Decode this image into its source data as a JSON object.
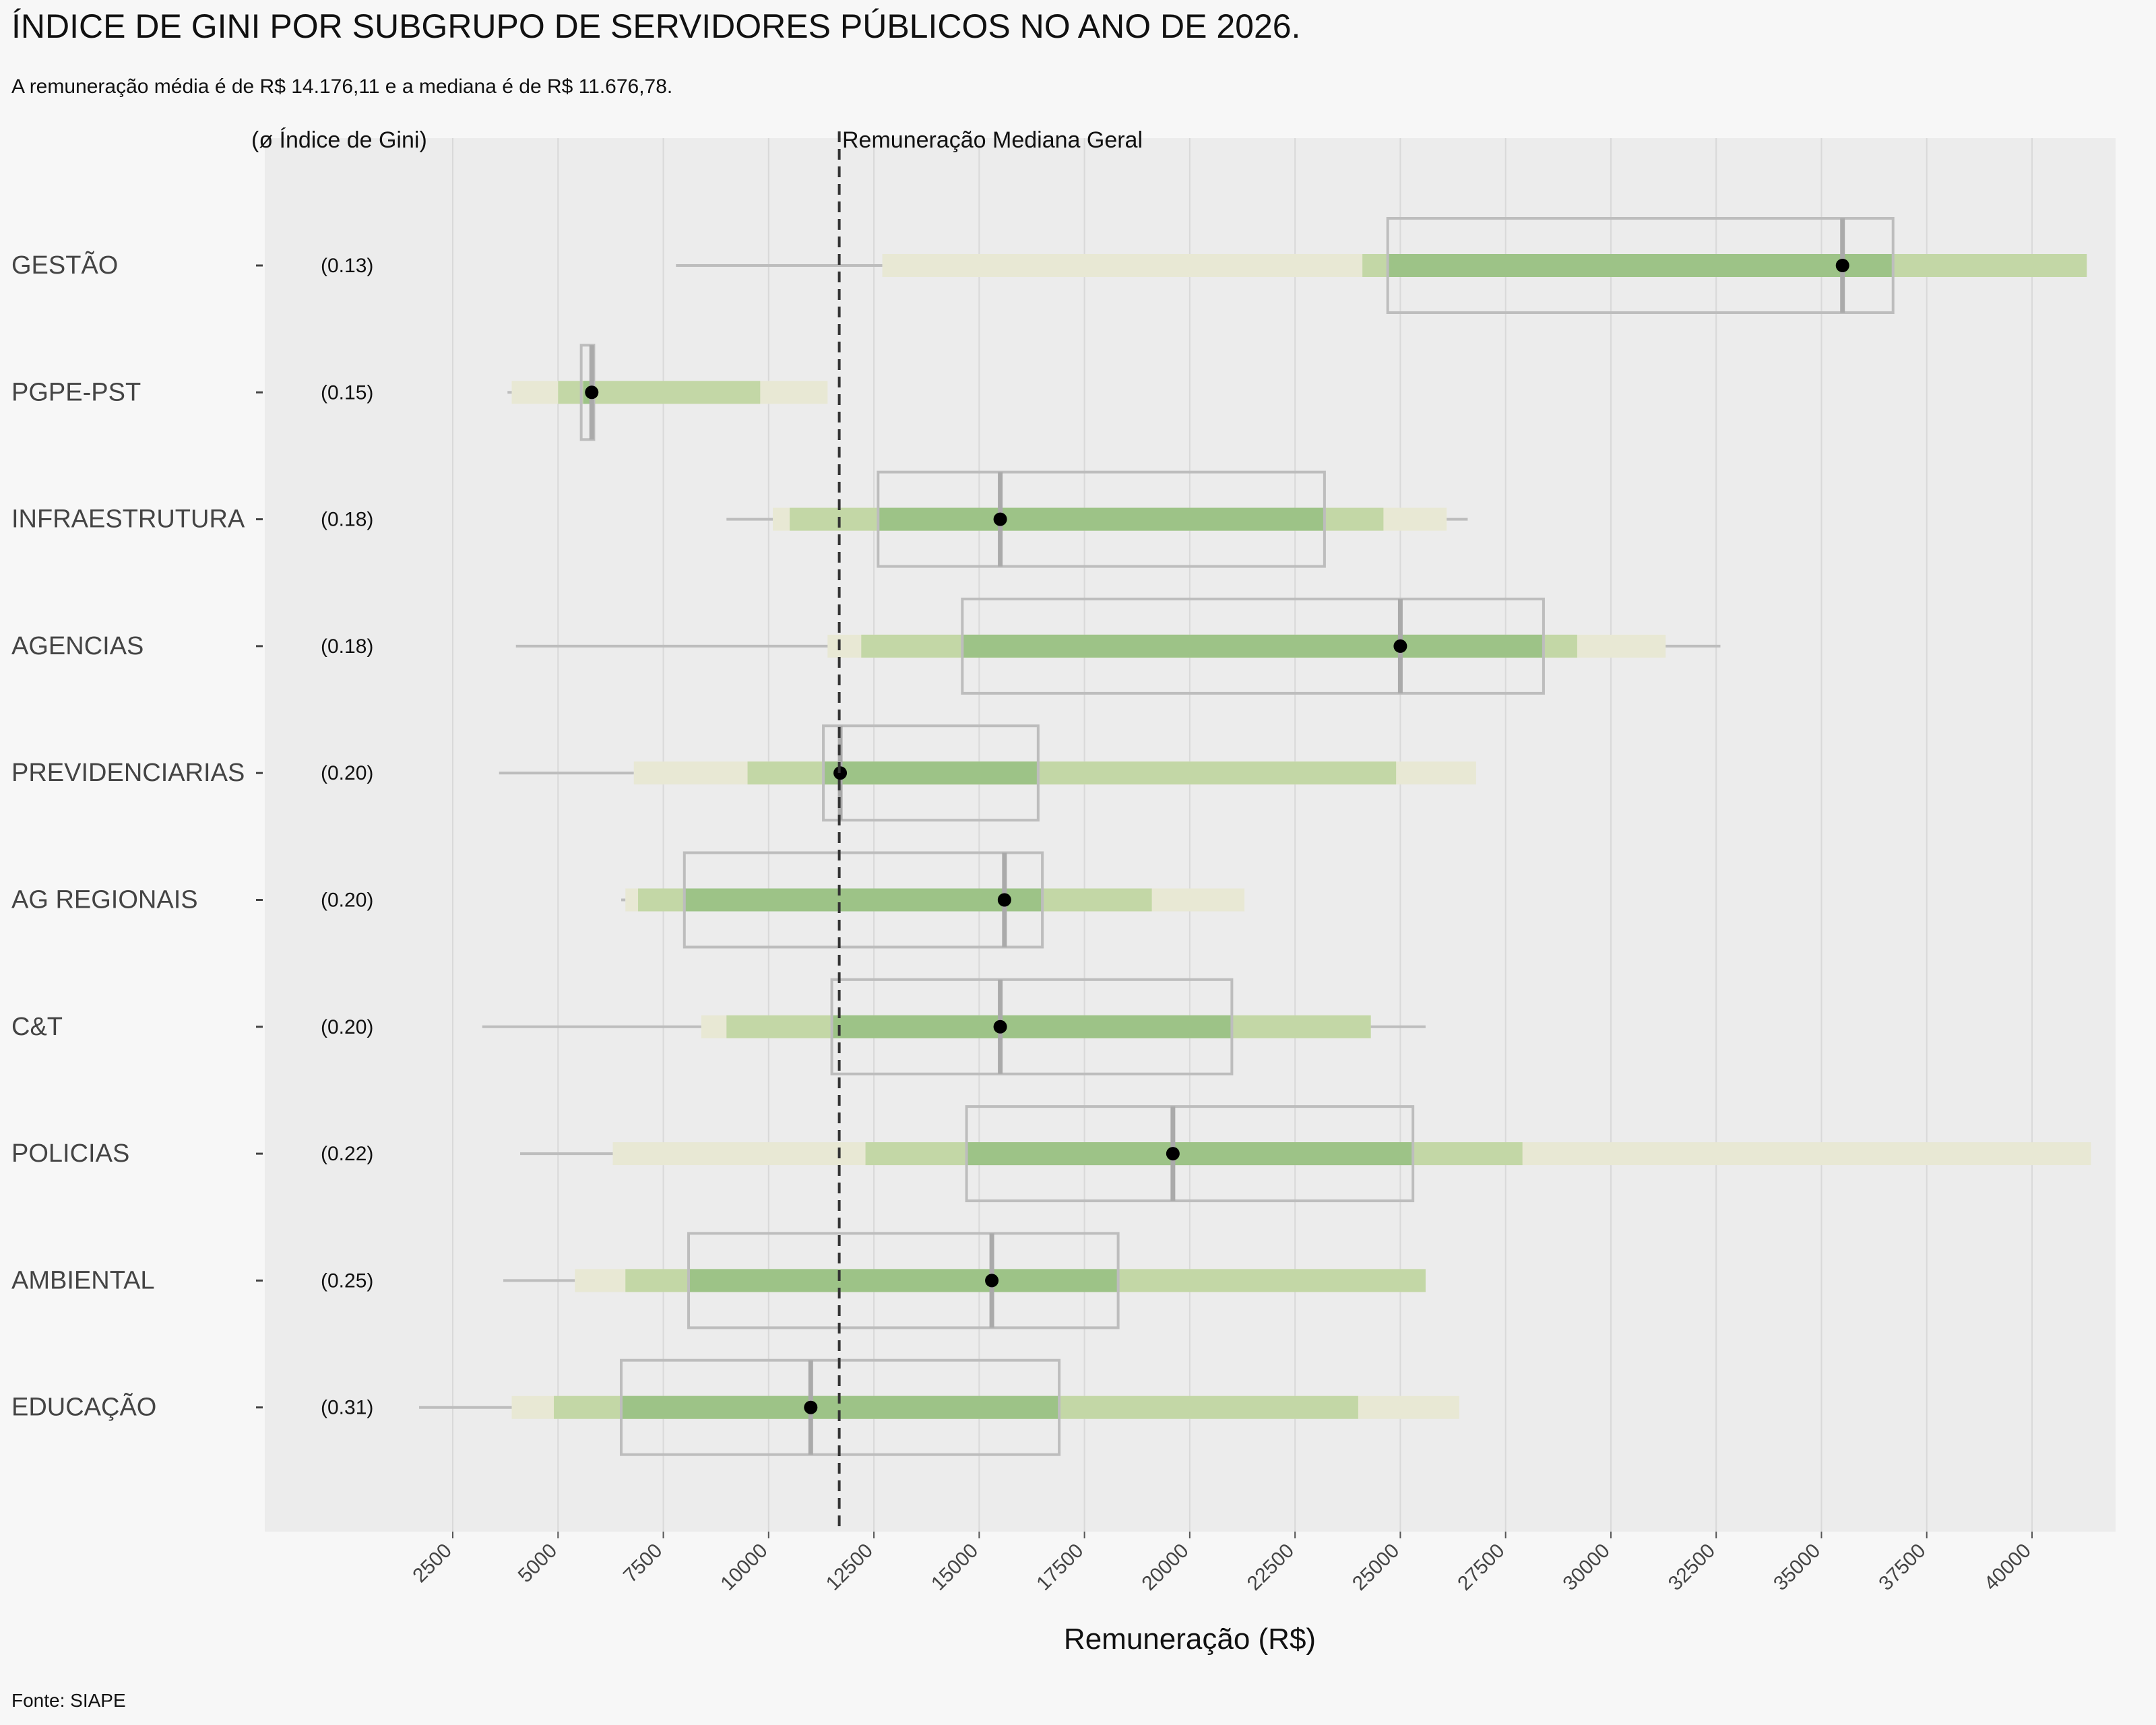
{
  "chart_data": {
    "type": "boxplot",
    "title": "ÍNDICE DE GINI POR SUBGRUPO DE SERVIDORES PÚBLICOS NO ANO DE 2026.",
    "subtitle": "A remuneração média é de R$ 14.176,11 e a mediana é de R$ 11.676,78.",
    "gini_header": "(ø Índice de Gini)",
    "reference_line": {
      "label": "Remuneração Mediana Geral",
      "value": 11676.78
    },
    "xlabel": "Remuneração (R$)",
    "caption": "Fonte: SIAPE",
    "xlim": [
      -2000,
      42000
    ],
    "xticks": [
      2500,
      5000,
      7500,
      10000,
      12500,
      15000,
      17500,
      20000,
      22500,
      25000,
      27500,
      30000,
      32500,
      35000,
      37500,
      40000
    ],
    "grid": true,
    "colors": {
      "band_outer": "#e8e8d4",
      "band_mid": "#c3d7a6",
      "band_inner": "#9dc387",
      "box": "#bdbdbd",
      "median_line": "#aaaaaa",
      "point": "#000000",
      "panel": "#ececec"
    },
    "groups": [
      {
        "name": "GESTÃO",
        "gini": "(0.13)",
        "whisker": [
          7800,
          12700
        ],
        "outer": [
          12700,
          41300
        ],
        "mid": [
          24100,
          41300
        ],
        "inner": [
          24700,
          36700
        ],
        "box": [
          24700,
          36700
        ],
        "median": 35500,
        "point": 35500
      },
      {
        "name": "PGPE-PST",
        "gini": "(0.15)",
        "whisker": [
          3800,
          3900
        ],
        "outer": [
          3900,
          11400
        ],
        "mid": [
          5000,
          9800
        ],
        "inner": [
          5600,
          5800
        ],
        "box": [
          5550,
          5850
        ],
        "median": 5800,
        "point": 5800
      },
      {
        "name": "INFRAESTRUTURA",
        "gini": "(0.18)",
        "whisker": [
          9000,
          26600
        ],
        "outer": [
          10100,
          26100
        ],
        "mid": [
          10500,
          24600
        ],
        "inner": [
          12600,
          23200
        ],
        "box": [
          12600,
          23200
        ],
        "median": 15500,
        "point": 15500
      },
      {
        "name": "AGENCIAS",
        "gini": "(0.18)",
        "whisker": [
          4000,
          32600
        ],
        "outer": [
          11400,
          31300
        ],
        "mid": [
          12200,
          29200
        ],
        "inner": [
          14600,
          28400
        ],
        "box": [
          14600,
          28400
        ],
        "median": 25000,
        "point": 25000
      },
      {
        "name": "PREVIDENCIARIAS",
        "gini": "(0.20)",
        "whisker": [
          3600,
          6800
        ],
        "outer": [
          6800,
          26800
        ],
        "mid": [
          9500,
          24900
        ],
        "inner": [
          11300,
          16400
        ],
        "box": [
          11300,
          16400
        ],
        "median": 11700,
        "point": 11700
      },
      {
        "name": "AG REGIONAIS",
        "gini": "(0.20)",
        "whisker": [
          6500,
          6600
        ],
        "outer": [
          6600,
          21300
        ],
        "mid": [
          6900,
          19100
        ],
        "inner": [
          8000,
          16500
        ],
        "box": [
          8000,
          16500
        ],
        "median": 15600,
        "point": 15600
      },
      {
        "name": "C&T",
        "gini": "(0.20)",
        "whisker": [
          3200,
          25600
        ],
        "outer": [
          8400,
          24300
        ],
        "mid": [
          9000,
          24300
        ],
        "inner": [
          11500,
          21000
        ],
        "box": [
          11500,
          21000
        ],
        "median": 15500,
        "point": 15500
      },
      {
        "name": "POLICIAS",
        "gini": "(0.22)",
        "whisker": [
          4100,
          6300
        ],
        "outer": [
          6300,
          41400
        ],
        "mid": [
          12300,
          27900
        ],
        "inner": [
          14700,
          25300
        ],
        "box": [
          14700,
          25300
        ],
        "median": 19600,
        "point": 19600
      },
      {
        "name": "AMBIENTAL",
        "gini": "(0.25)",
        "whisker": [
          3700,
          5400
        ],
        "outer": [
          5400,
          25600
        ],
        "mid": [
          6600,
          25600
        ],
        "inner": [
          8100,
          18300
        ],
        "box": [
          8100,
          18300
        ],
        "median": 15300,
        "point": 15300
      },
      {
        "name": "EDUCAÇÃO",
        "gini": "(0.31)",
        "whisker": [
          1700,
          3900
        ],
        "outer": [
          3900,
          26400
        ],
        "mid": [
          4900,
          24000
        ],
        "inner": [
          6500,
          16900
        ],
        "box": [
          6500,
          16900
        ],
        "median": 11000,
        "point": 11000
      }
    ]
  }
}
